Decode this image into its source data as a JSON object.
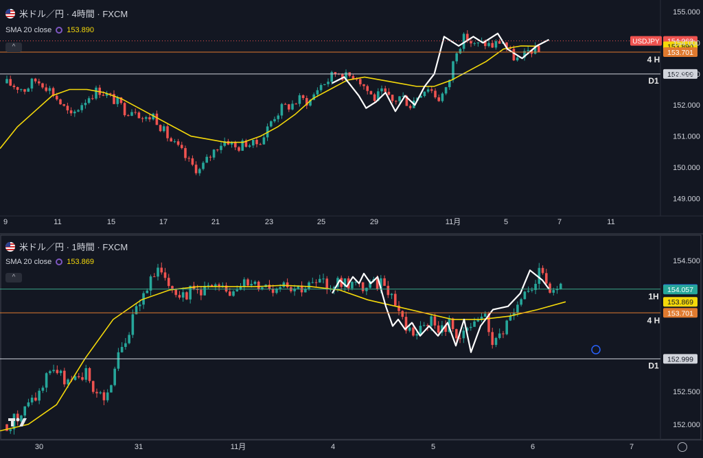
{
  "colors": {
    "background": "#131722",
    "up_candle": "#26a69a",
    "down_candle": "#ef5350",
    "sma": "#f5d90a",
    "swing_line": "#ffffff",
    "level_4h": "#e07a2f",
    "level_d1": "#d1d4dc",
    "level_1h": "#3aa68a",
    "grid_text": "#d1d4dc"
  },
  "icons": [
    "us-flag-icon",
    "indicator-settings-icon",
    "collapse-chevron-icon",
    "tradingview-logo-icon",
    "settings-gear-icon"
  ],
  "top_panel": {
    "title": "米ドル／円 · 4時間 · FXCM",
    "indicator_label": "SMA 20 close",
    "indicator_value": "153.890",
    "collapse_symbol": "^"
  },
  "bottom_panel": {
    "title": "米ドル／円 · 1時間 · FXCM",
    "indicator_label": "SMA 20 close",
    "indicator_value": "153.869",
    "collapse_symbol": "^"
  },
  "chart_data": [
    {
      "type": "candlestick",
      "timeframe": "4時間",
      "ylim": [
        148.5,
        155.2
      ],
      "y_ticks": [
        "155.000",
        "154.000",
        "153.000",
        "152.000",
        "151.000",
        "150.000",
        "149.000"
      ],
      "y_tick_values": [
        155,
        154,
        153,
        152,
        151,
        150,
        149
      ],
      "x_ticks": [
        "9",
        "11",
        "15",
        "17",
        "21",
        "23",
        "25",
        "29",
        "11月",
        "5",
        "7",
        "11"
      ],
      "x_tick_index": [
        0,
        12,
        24,
        36,
        48,
        60,
        72,
        84,
        96,
        108,
        120,
        132
      ],
      "bar_count_range": [
        0,
        140
      ],
      "close_path": [
        152.7,
        152.6,
        152.5,
        152.8,
        152.7,
        152.4,
        152.0,
        151.6,
        152.0,
        152.3,
        152.5,
        152.3,
        152.1,
        151.8,
        151.9,
        151.5,
        151.7,
        151.2,
        150.8,
        150.5,
        150.1,
        149.9,
        150.3,
        150.7,
        150.9,
        150.6,
        150.8,
        150.7,
        151.0,
        151.6,
        151.9,
        152.0,
        152.2,
        152.1,
        152.6,
        152.8,
        153.1,
        152.9,
        153.0,
        152.6,
        152.2,
        152.4,
        152.1,
        152.3,
        152.0,
        152.4,
        152.6,
        152.2,
        152.5,
        153.8,
        154.2,
        153.9,
        154.0,
        153.9,
        154.1,
        153.6,
        153.4,
        153.8,
        153.7
      ],
      "sma_values": [
        150.6,
        151.3,
        151.8,
        152.3,
        152.5,
        152.5,
        152.4,
        152.2,
        151.9,
        151.6,
        151.3,
        151.0,
        150.9,
        150.8,
        150.8,
        151.0,
        151.3,
        151.7,
        152.2,
        152.5,
        152.8,
        152.9,
        152.8,
        152.7,
        152.6,
        152.6,
        152.8,
        153.1,
        153.4,
        153.8,
        153.9,
        153.89
      ],
      "swing_points": [
        [
          156,
          152.7
        ],
        [
          161,
          152.9
        ],
        [
          167,
          152.3
        ],
        [
          170,
          151.9
        ],
        [
          174,
          152.1
        ],
        [
          178,
          152.4
        ],
        [
          182,
          151.8
        ],
        [
          186,
          152.3
        ],
        [
          190,
          152.0
        ],
        [
          194,
          152.6
        ],
        [
          198,
          153.0
        ],
        [
          202,
          154.2
        ],
        [
          208,
          153.9
        ],
        [
          214,
          154.2
        ],
        [
          218,
          154.0
        ],
        [
          224,
          154.3
        ],
        [
          228,
          153.8
        ],
        [
          234,
          153.5
        ],
        [
          240,
          153.9
        ],
        [
          245,
          154.1
        ]
      ],
      "levels": [
        {
          "name": "USDJPY",
          "value": "154.063",
          "price": 154.063,
          "color": "#ef5350",
          "text_color": "#ffffff",
          "style": "dotted"
        },
        {
          "name": "",
          "value": "153.890",
          "price": 153.89,
          "color": "#f5d90a",
          "text_color": "#131722",
          "style": "none"
        },
        {
          "name": "4 H",
          "value": "153.701",
          "price": 153.701,
          "color": "#e07a2f",
          "text_color": "#ffffff",
          "style": "solid"
        },
        {
          "name": "D1",
          "value": "152.999",
          "price": 152.999,
          "color": "#d1d4dc",
          "text_color": "#131722",
          "style": "solid"
        }
      ]
    },
    {
      "type": "candlestick",
      "timeframe": "1時間",
      "ylim": [
        151.8,
        154.75
      ],
      "y_ticks": [
        "154.500",
        "152.500",
        "152.000"
      ],
      "y_tick_values": [
        154.5,
        152.5,
        152.0
      ],
      "x_ticks": [
        "30",
        "31",
        "11月",
        "4",
        "5",
        "6",
        "7"
      ],
      "x_tick_index": [
        0,
        24,
        48,
        72,
        96,
        120,
        144
      ],
      "levels": [
        {
          "name": "1H",
          "value": "154.063",
          "price": 154.063,
          "color": "#2962ff",
          "text_color": "#ffffff",
          "style": "solid-green"
        },
        {
          "name": "",
          "value": "154.057",
          "price": 154.057,
          "color": "#26a69a",
          "text_color": "#ffffff",
          "style": "none"
        },
        {
          "name": "",
          "value": "153.869",
          "price": 153.869,
          "color": "#f5d90a",
          "text_color": "#131722",
          "style": "none"
        },
        {
          "name": "4 H",
          "value": "153.701",
          "price": 153.701,
          "color": "#e07a2f",
          "text_color": "#ffffff",
          "style": "solid"
        },
        {
          "name": "D1",
          "value": "152.999",
          "price": 152.999,
          "color": "#d1d4dc",
          "text_color": "#131722",
          "style": "solid"
        }
      ],
      "close_path": [
        152.0,
        152.1,
        152.3,
        152.5,
        152.9,
        152.7,
        152.6,
        152.8,
        152.5,
        152.4,
        153.0,
        153.4,
        153.9,
        154.2,
        154.35,
        154.1,
        154.0,
        154.05,
        154.1,
        154.05,
        154.0,
        154.2,
        154.1,
        154.15,
        154.1,
        154.2,
        154.1,
        154.1,
        154.15,
        154.1,
        154.2,
        154.15,
        154.1,
        154.1,
        154.2,
        153.9,
        153.5,
        153.4,
        153.6,
        153.4,
        153.55,
        153.3,
        153.5,
        153.7,
        153.2,
        153.5,
        153.7,
        154.0,
        154.3,
        154.05,
        154.06
      ],
      "sma_values": [
        151.9,
        152.0,
        152.3,
        153.0,
        153.6,
        153.9,
        154.05,
        154.1,
        154.1,
        154.1,
        154.12,
        154.1,
        154.05,
        153.9,
        153.8,
        153.7,
        153.6,
        153.6,
        153.65,
        153.75,
        153.869
      ],
      "swing_points": [
        [
          484,
          154.0
        ],
        [
          495,
          154.2
        ],
        [
          505,
          154.1
        ],
        [
          514,
          154.25
        ],
        [
          523,
          154.15
        ],
        [
          530,
          154.3
        ],
        [
          540,
          154.15
        ],
        [
          550,
          154.25
        ],
        [
          562,
          153.8
        ],
        [
          572,
          153.5
        ],
        [
          580,
          153.6
        ],
        [
          590,
          153.45
        ],
        [
          600,
          153.55
        ],
        [
          612,
          153.35
        ],
        [
          625,
          153.5
        ],
        [
          638,
          153.35
        ],
        [
          652,
          153.55
        ],
        [
          664,
          153.2
        ],
        [
          676,
          153.6
        ],
        [
          686,
          153.1
        ],
        [
          700,
          153.5
        ],
        [
          718,
          153.75
        ],
        [
          740,
          153.8
        ],
        [
          758,
          154.0
        ],
        [
          772,
          154.35
        ],
        [
          790,
          154.2
        ],
        [
          800,
          154.06
        ]
      ]
    }
  ]
}
